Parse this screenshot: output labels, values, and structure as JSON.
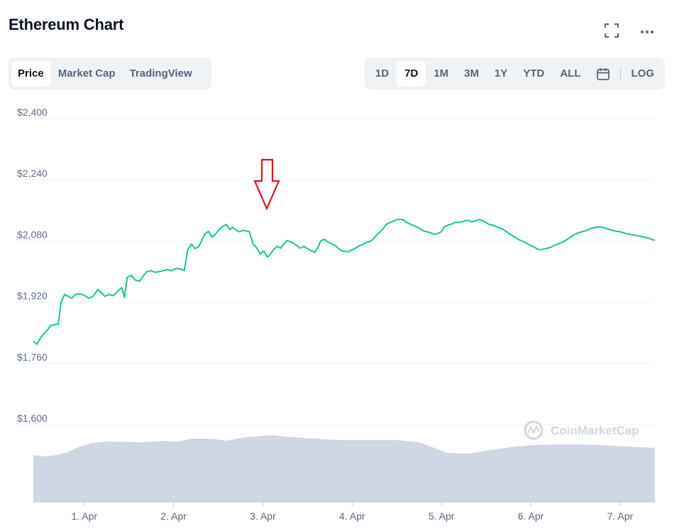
{
  "header": {
    "title": "Ethereum Chart",
    "fullscreen_icon": "fullscreen-icon",
    "more_icon": "more-horizontal-icon"
  },
  "tabs_left": [
    {
      "label": "Price",
      "active": true
    },
    {
      "label": "Market Cap",
      "active": false
    },
    {
      "label": "TradingView",
      "active": false
    }
  ],
  "tabs_right": {
    "ranges": [
      {
        "label": "1D",
        "active": false
      },
      {
        "label": "7D",
        "active": true
      },
      {
        "label": "1M",
        "active": false
      },
      {
        "label": "3M",
        "active": false
      },
      {
        "label": "1Y",
        "active": false
      },
      {
        "label": "YTD",
        "active": false
      },
      {
        "label": "ALL",
        "active": false
      }
    ],
    "calendar_icon": "calendar-icon",
    "log_label": "LOG"
  },
  "watermark": "CoinMarketCap",
  "colors": {
    "line": "#16c784",
    "volume": "#cfd6e4",
    "grid": "#eff2f5",
    "annotation_arrow": "#e0151f"
  },
  "chart_data": {
    "type": "line",
    "title": "",
    "xlabel": "",
    "ylabel": "",
    "ylim": [
      1500,
      2400
    ],
    "yticks": [
      1600,
      1760,
      1920,
      2080,
      2240,
      2400
    ],
    "ytick_labels": [
      "$1,600",
      "$1,760",
      "$1,920",
      "$2,080",
      "$2,240",
      "$2,400"
    ],
    "xlim": [
      0.43,
      7.39
    ],
    "xticks": [
      1,
      2,
      3,
      4,
      5,
      6,
      7
    ],
    "xtick_labels": [
      "1. Apr",
      "2. Apr",
      "3. Apr",
      "4. Apr",
      "5. Apr",
      "6. Apr",
      "7. Apr"
    ],
    "grid": true,
    "series": [
      {
        "values": [
          [
            0.43,
            1818
          ],
          [
            0.47,
            1810
          ],
          [
            0.52,
            1830
          ],
          [
            0.58,
            1845
          ],
          [
            0.62,
            1858
          ],
          [
            0.67,
            1862
          ],
          [
            0.71,
            1862
          ],
          [
            0.74,
            1920
          ],
          [
            0.78,
            1940
          ],
          [
            0.82,
            1935
          ],
          [
            0.86,
            1930
          ],
          [
            0.9,
            1940
          ],
          [
            0.95,
            1942
          ],
          [
            1.0,
            1938
          ],
          [
            1.05,
            1930
          ],
          [
            1.1,
            1935
          ],
          [
            1.15,
            1953
          ],
          [
            1.19,
            1945
          ],
          [
            1.23,
            1935
          ],
          [
            1.28,
            1940
          ],
          [
            1.32,
            1937
          ],
          [
            1.35,
            1942
          ],
          [
            1.39,
            1952
          ],
          [
            1.42,
            1958
          ],
          [
            1.45,
            1932
          ],
          [
            1.48,
            1985
          ],
          [
            1.53,
            1990
          ],
          [
            1.57,
            1978
          ],
          [
            1.62,
            1975
          ],
          [
            1.66,
            1988
          ],
          [
            1.7,
            2000
          ],
          [
            1.75,
            2002
          ],
          [
            1.79,
            1998
          ],
          [
            1.84,
            2000
          ],
          [
            1.88,
            2002
          ],
          [
            1.93,
            2005
          ],
          [
            1.98,
            2002
          ],
          [
            2.03,
            2008
          ],
          [
            2.07,
            2007
          ],
          [
            2.12,
            2003
          ],
          [
            2.16,
            2058
          ],
          [
            2.2,
            2072
          ],
          [
            2.24,
            2060
          ],
          [
            2.28,
            2065
          ],
          [
            2.31,
            2078
          ],
          [
            2.35,
            2098
          ],
          [
            2.39,
            2105
          ],
          [
            2.43,
            2090
          ],
          [
            2.47,
            2098
          ],
          [
            2.51,
            2110
          ],
          [
            2.55,
            2118
          ],
          [
            2.59,
            2123
          ],
          [
            2.63,
            2110
          ],
          [
            2.66,
            2116
          ],
          [
            2.7,
            2108
          ],
          [
            2.74,
            2104
          ],
          [
            2.78,
            2108
          ],
          [
            2.81,
            2106
          ],
          [
            2.85,
            2104
          ],
          [
            2.89,
            2072
          ],
          [
            2.93,
            2062
          ],
          [
            2.97,
            2046
          ],
          [
            3.01,
            2054
          ],
          [
            3.05,
            2038
          ],
          [
            3.08,
            2044
          ],
          [
            3.12,
            2058
          ],
          [
            3.16,
            2066
          ],
          [
            3.2,
            2061
          ],
          [
            3.23,
            2071
          ],
          [
            3.27,
            2081
          ],
          [
            3.31,
            2078
          ],
          [
            3.35,
            2073
          ],
          [
            3.38,
            2068
          ],
          [
            3.42,
            2061
          ],
          [
            3.46,
            2066
          ],
          [
            3.5,
            2060
          ],
          [
            3.54,
            2055
          ],
          [
            3.58,
            2050
          ],
          [
            3.62,
            2065
          ],
          [
            3.65,
            2081
          ],
          [
            3.69,
            2084
          ],
          [
            3.73,
            2077
          ],
          [
            3.77,
            2073
          ],
          [
            3.81,
            2068
          ],
          [
            3.85,
            2060
          ],
          [
            3.88,
            2054
          ],
          [
            3.92,
            2052
          ],
          [
            3.96,
            2052
          ],
          [
            4.0,
            2057
          ],
          [
            4.04,
            2061
          ],
          [
            4.07,
            2066
          ],
          [
            4.11,
            2070
          ],
          [
            4.15,
            2075
          ],
          [
            4.19,
            2078
          ],
          [
            4.23,
            2083
          ],
          [
            4.26,
            2092
          ],
          [
            4.3,
            2101
          ],
          [
            4.34,
            2110
          ],
          [
            4.38,
            2123
          ],
          [
            4.42,
            2128
          ],
          [
            4.46,
            2131
          ],
          [
            4.5,
            2136
          ],
          [
            4.53,
            2136
          ],
          [
            4.57,
            2136
          ],
          [
            4.61,
            2128
          ],
          [
            4.65,
            2124
          ],
          [
            4.69,
            2120
          ],
          [
            4.73,
            2116
          ],
          [
            4.76,
            2112
          ],
          [
            4.8,
            2106
          ],
          [
            4.84,
            2104
          ],
          [
            4.88,
            2101
          ],
          [
            4.92,
            2097
          ],
          [
            4.96,
            2099
          ],
          [
            5.0,
            2105
          ],
          [
            5.03,
            2116
          ],
          [
            5.07,
            2121
          ],
          [
            5.11,
            2124
          ],
          [
            5.15,
            2128
          ],
          [
            5.19,
            2128
          ],
          [
            5.23,
            2130
          ],
          [
            5.27,
            2133
          ],
          [
            5.31,
            2133
          ],
          [
            5.34,
            2130
          ],
          [
            5.38,
            2133
          ],
          [
            5.42,
            2136
          ],
          [
            5.46,
            2133
          ],
          [
            5.5,
            2128
          ],
          [
            5.54,
            2122
          ],
          [
            5.57,
            2122
          ],
          [
            5.61,
            2118
          ],
          [
            5.65,
            2114
          ],
          [
            5.69,
            2110
          ],
          [
            5.73,
            2104
          ],
          [
            5.77,
            2097
          ],
          [
            5.8,
            2093
          ],
          [
            5.84,
            2087
          ],
          [
            5.88,
            2082
          ],
          [
            5.92,
            2078
          ],
          [
            5.96,
            2073
          ],
          [
            6.0,
            2068
          ],
          [
            6.04,
            2064
          ],
          [
            6.07,
            2059
          ],
          [
            6.11,
            2057
          ],
          [
            6.15,
            2059
          ],
          [
            6.19,
            2061
          ],
          [
            6.23,
            2064
          ],
          [
            6.27,
            2069
          ],
          [
            6.3,
            2071
          ],
          [
            6.34,
            2075
          ],
          [
            6.38,
            2080
          ],
          [
            6.42,
            2086
          ],
          [
            6.46,
            2092
          ],
          [
            6.5,
            2098
          ],
          [
            6.53,
            2101
          ],
          [
            6.57,
            2104
          ],
          [
            6.61,
            2106
          ],
          [
            6.65,
            2110
          ],
          [
            6.69,
            2114
          ],
          [
            6.73,
            2116
          ],
          [
            6.77,
            2117
          ],
          [
            6.8,
            2116
          ],
          [
            6.84,
            2113
          ],
          [
            6.88,
            2110
          ],
          [
            6.92,
            2107
          ],
          [
            6.96,
            2105
          ],
          [
            7.0,
            2104
          ],
          [
            7.03,
            2102
          ],
          [
            7.07,
            2099
          ],
          [
            7.11,
            2097
          ],
          [
            7.15,
            2095
          ],
          [
            7.19,
            2094
          ],
          [
            7.23,
            2092
          ],
          [
            7.27,
            2090
          ],
          [
            7.31,
            2088
          ],
          [
            7.35,
            2084
          ],
          [
            7.39,
            2082
          ]
        ]
      }
    ]
  }
}
